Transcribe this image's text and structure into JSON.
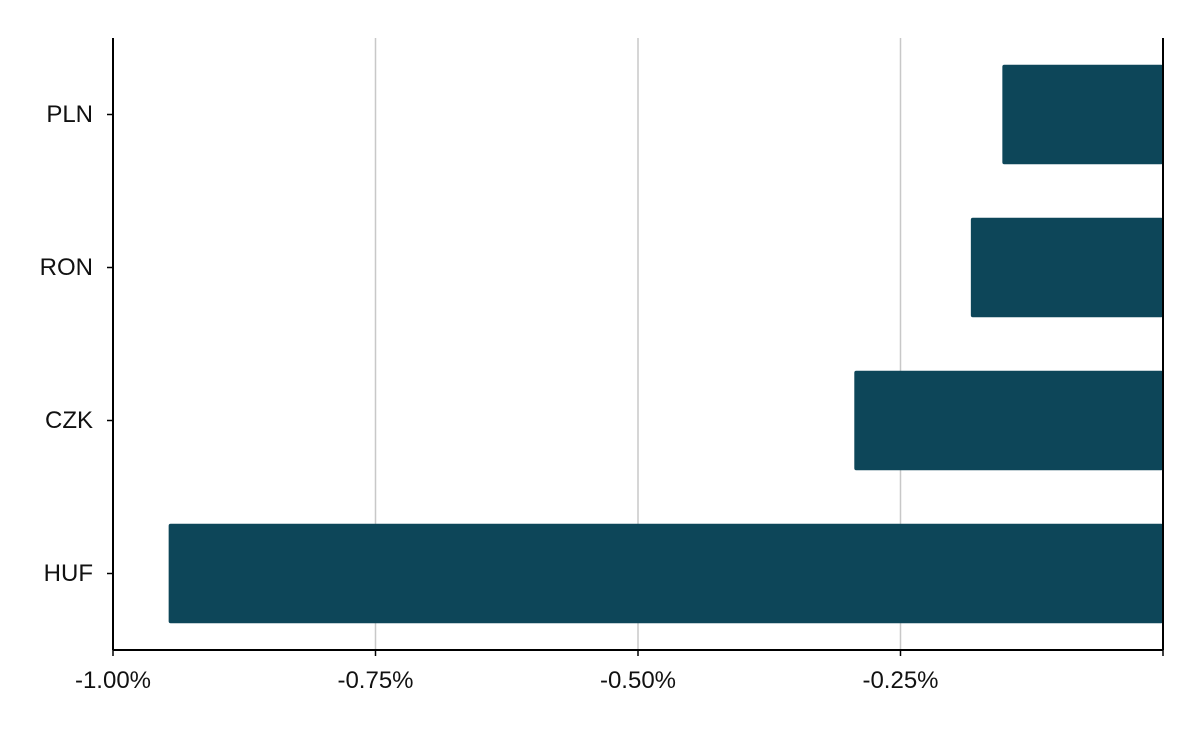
{
  "chart_data": {
    "type": "bar",
    "orientation": "horizontal",
    "categories": [
      "PLN",
      "RON",
      "CZK",
      "HUF"
    ],
    "values": [
      -0.153,
      -0.183,
      -0.294,
      -0.947
    ],
    "xlim": [
      -1.0,
      0.0
    ],
    "xticks": [
      -1.0,
      -0.75,
      -0.5,
      -0.25
    ],
    "xtick_labels": [
      "-1.00%",
      "-0.75%",
      "-0.50%",
      "-0.25%"
    ],
    "title": "",
    "xlabel": "",
    "ylabel": "",
    "grid": "vertical",
    "legend": "none",
    "colors": {
      "bar": "#0d4659",
      "grid": "#c8c8c8",
      "axis": "#000000",
      "text": "#111111"
    }
  }
}
